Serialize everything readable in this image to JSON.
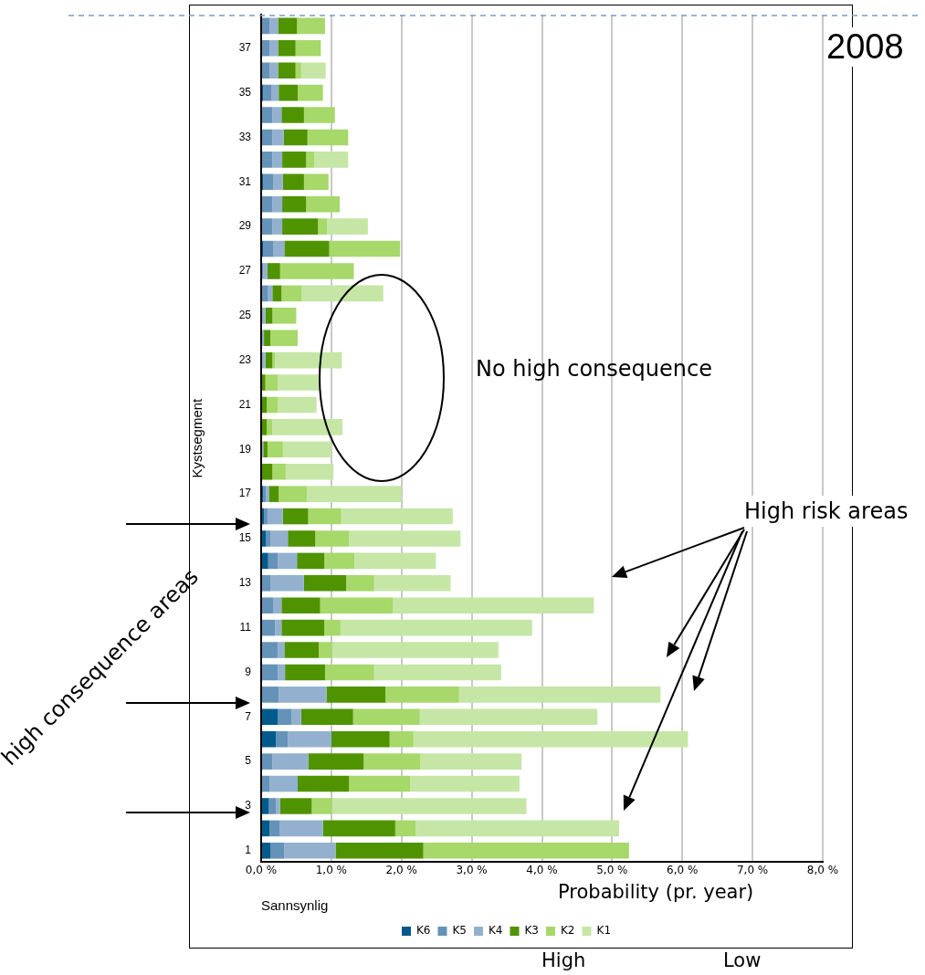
{
  "chart_data": {
    "type": "bar",
    "orientation": "horizontal",
    "stacked": true,
    "title": "2008",
    "xlabel": "Sannsynlig",
    "ylabel": "Kystsegment",
    "categories": [
      null,
      "37",
      null,
      "35",
      null,
      "33",
      null,
      "31",
      null,
      "29",
      null,
      "27",
      null,
      "25",
      null,
      "23",
      null,
      "21",
      null,
      "19",
      null,
      "17",
      null,
      "15",
      null,
      "13",
      null,
      "11",
      null,
      "9",
      null,
      "7",
      null,
      "5",
      null,
      "3",
      null,
      "1"
    ],
    "series": [
      {
        "name": "K6",
        "color": "#005a8c",
        "values": [
          0,
          0,
          0,
          0.03,
          0,
          0,
          0,
          0.03,
          0,
          0,
          0.03,
          0,
          0,
          0,
          0,
          0,
          0,
          0,
          0,
          0,
          0,
          0.03,
          0.04,
          0.07,
          0.1,
          0,
          0,
          0,
          0,
          0,
          0,
          0.24,
          0.21,
          0,
          0,
          0.11,
          0.12,
          0.13
        ]
      },
      {
        "name": "K5",
        "color": "#6592b8",
        "values": [
          0.12,
          0.12,
          0.12,
          0.12,
          0.16,
          0.16,
          0.16,
          0.14,
          0.16,
          0.16,
          0.14,
          0.03,
          0.1,
          0,
          0,
          0,
          0,
          0,
          0,
          0,
          0,
          0.04,
          0.05,
          0.06,
          0.14,
          0.13,
          0.17,
          0.2,
          0.24,
          0.24,
          0.25,
          0.19,
          0.17,
          0.16,
          0.12,
          0.1,
          0.14,
          0.2
        ]
      },
      {
        "name": "K4",
        "color": "#93b1cf",
        "values": [
          0.12,
          0.12,
          0.12,
          0.1,
          0.13,
          0.16,
          0.14,
          0.14,
          0.14,
          0.14,
          0.16,
          0.06,
          0.06,
          0.06,
          0.04,
          0.06,
          0,
          0,
          0,
          0.03,
          0,
          0.04,
          0.22,
          0.25,
          0.27,
          0.48,
          0.12,
          0.09,
          0.09,
          0.1,
          0.68,
          0.14,
          0.62,
          0.51,
          0.4,
          0.06,
          0.62,
          0.73
        ]
      },
      {
        "name": "K3",
        "color": "#4f9300",
        "values": [
          0.27,
          0.25,
          0.25,
          0.27,
          0.32,
          0.34,
          0.34,
          0.3,
          0.34,
          0.51,
          0.64,
          0.18,
          0.13,
          0.1,
          0.09,
          0.1,
          0.06,
          0.08,
          0.08,
          0.06,
          0.16,
          0.14,
          0.36,
          0.39,
          0.39,
          0.6,
          0.55,
          0.61,
          0.49,
          0.57,
          0.84,
          0.74,
          0.83,
          0.79,
          0.73,
          0.45,
          1.03,
          1.25
        ]
      },
      {
        "name": "K2",
        "color": "#a6d86a",
        "values": [
          0.4,
          0.36,
          0.08,
          0.36,
          0.44,
          0.58,
          0.12,
          0.35,
          0.48,
          0.13,
          1.01,
          1.05,
          0.29,
          0.34,
          0.39,
          0.04,
          0.18,
          0.16,
          0.08,
          0.22,
          0.19,
          0.4,
          0.47,
          0.48,
          0.43,
          0.4,
          1.04,
          0.23,
          0.19,
          0.7,
          1.05,
          0.95,
          0.34,
          0.81,
          0.87,
          0.29,
          0.29,
          2.93
        ]
      },
      {
        "name": "K1",
        "color": "#c6e6a6",
        "values": [
          0,
          0,
          0.35,
          0,
          0,
          0,
          0.48,
          0,
          0,
          0.58,
          0,
          0,
          1.16,
          0,
          0,
          0.95,
          0.58,
          0.55,
          1.0,
          0.69,
          0.68,
          1.35,
          1.59,
          1.59,
          1.16,
          1.09,
          2.86,
          2.73,
          2.37,
          1.81,
          2.87,
          2.53,
          3.91,
          1.44,
          1.56,
          2.77,
          2.9,
          0
        ]
      }
    ],
    "xlim": [
      0,
      8
    ],
    "xticks": [
      {
        "value": 0,
        "label": "0,0 %"
      },
      {
        "value": 1,
        "label": "1,0 %"
      },
      {
        "value": 2,
        "label": "2,0 %"
      },
      {
        "value": 3,
        "label": "3,0 %"
      },
      {
        "value": 4,
        "label": "4,0 %"
      },
      {
        "value": 5,
        "label": "5,0 %"
      },
      {
        "value": 6,
        "label": "6,0 %"
      },
      {
        "value": 7,
        "label": "7,0 %"
      },
      {
        "value": 8,
        "label": "8,0 %"
      }
    ],
    "grid": "x",
    "legend": "bottom",
    "annotations": [
      "No high consequence",
      "High risk areas",
      "high consequence areas",
      "Probability (pr. year)",
      "High",
      "Low"
    ]
  }
}
